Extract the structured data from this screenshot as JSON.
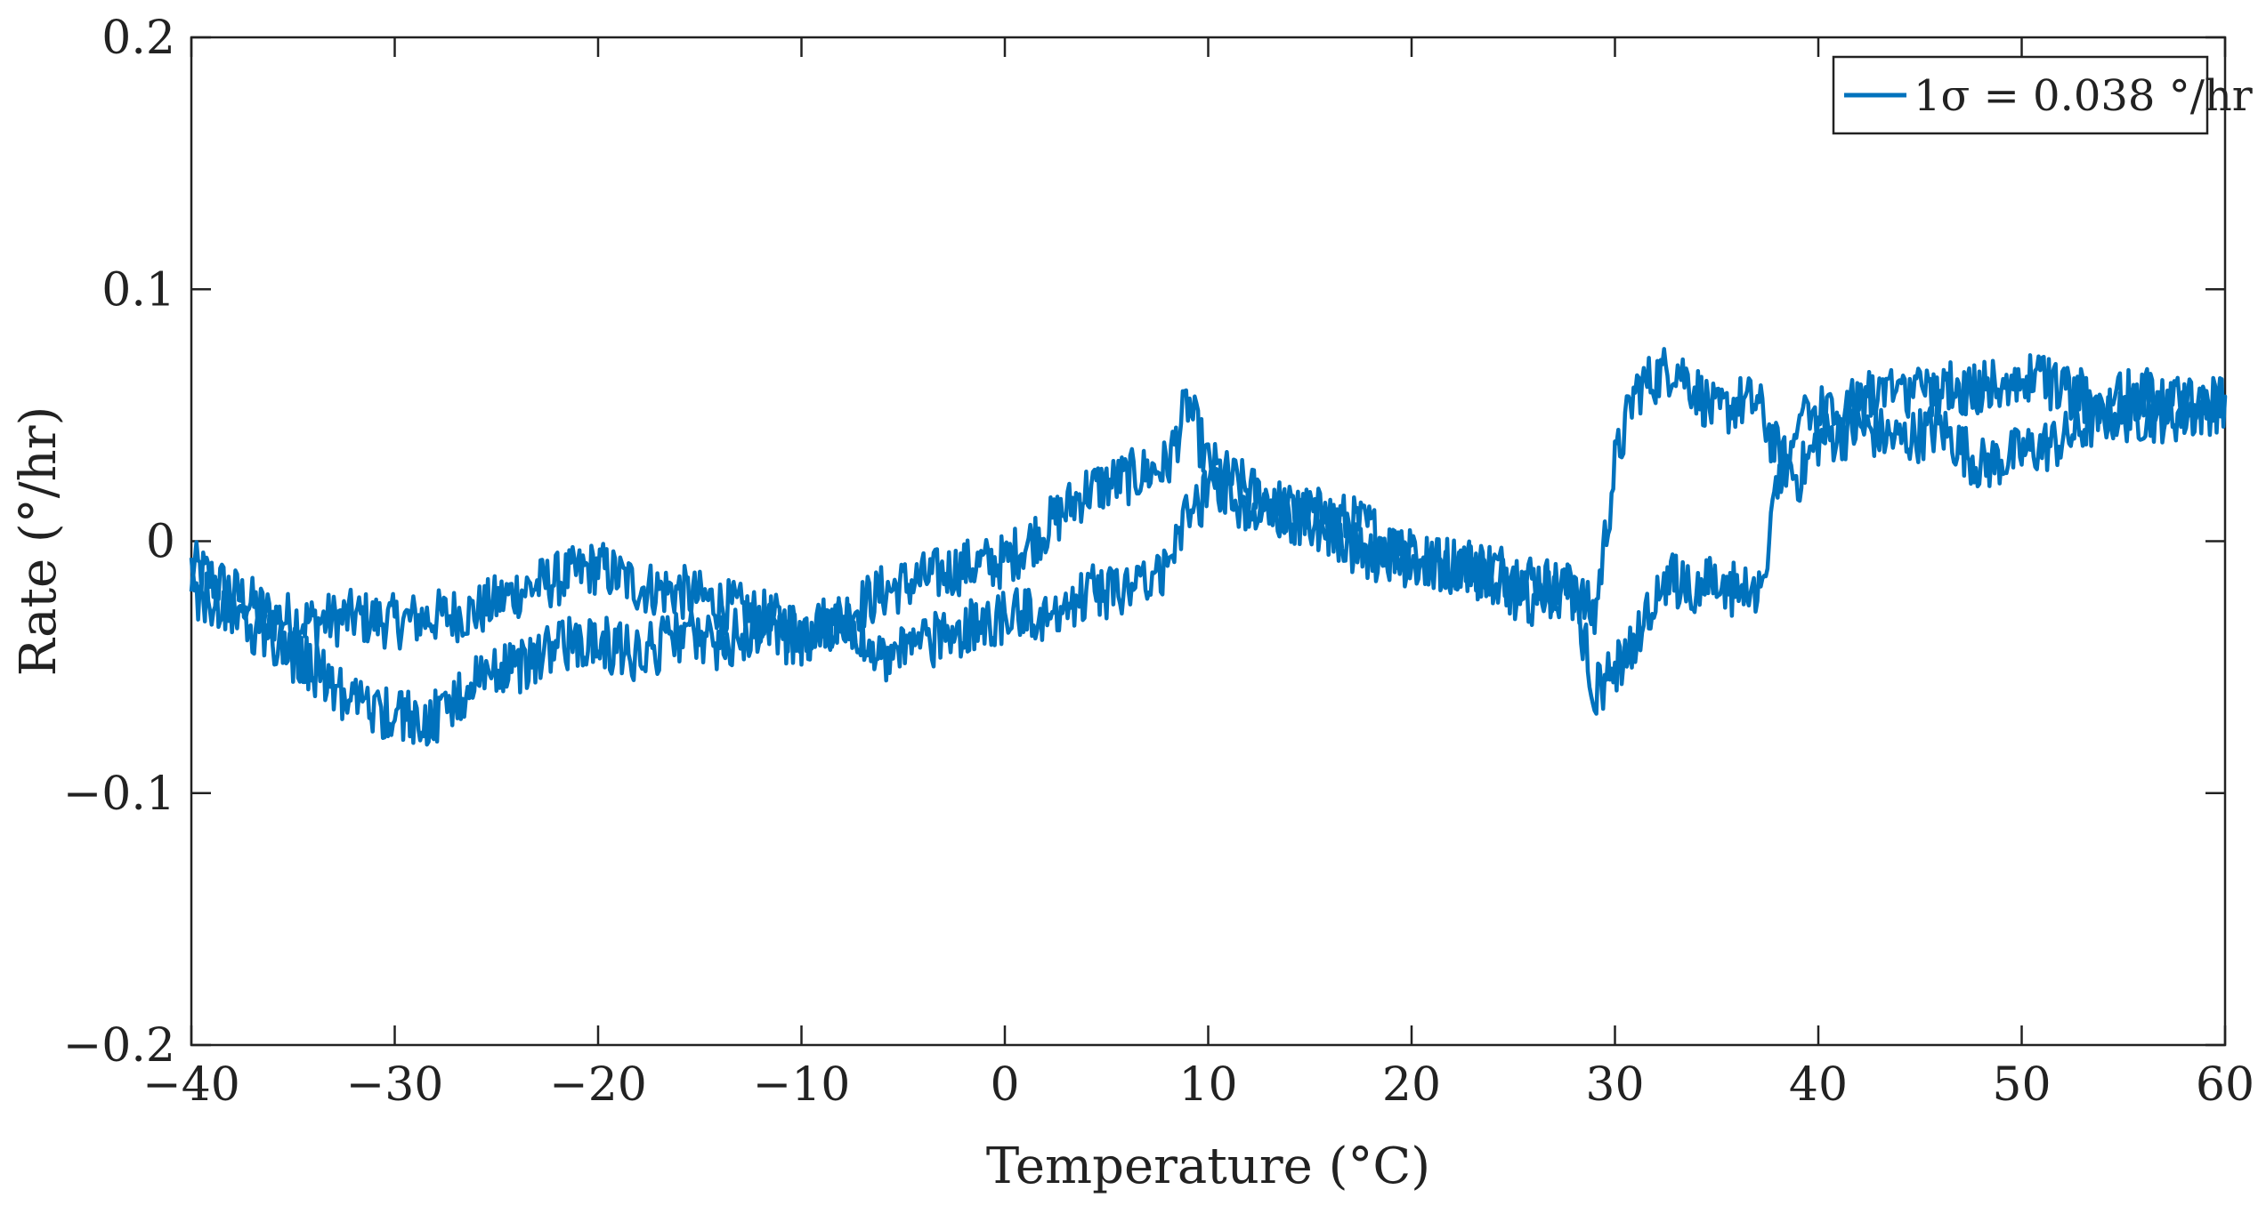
{
  "chart_data": {
    "type": "line",
    "title": "",
    "xlabel": "Temperature (°C)",
    "ylabel": "Rate (°/hr)",
    "xlim": [
      -40,
      60
    ],
    "ylim": [
      -0.2,
      0.2
    ],
    "x_ticks": [
      -40,
      -30,
      -20,
      -10,
      0,
      10,
      20,
      30,
      40,
      50,
      60
    ],
    "x_tick_labels": [
      "−40",
      "−30",
      "−20",
      "−10",
      "0",
      "10",
      "20",
      "30",
      "40",
      "50",
      "60"
    ],
    "y_ticks": [
      -0.2,
      -0.1,
      0,
      0.1,
      0.2
    ],
    "y_tick_labels": [
      "−0.2",
      "−0.1",
      "0",
      "0.1",
      "0.2"
    ],
    "grid": false,
    "legend_position": "top-right",
    "legend_text": "1σ = 0.038 °/hr",
    "line_color": "#0072BD",
    "series": [
      {
        "name": "1σ = 0.038 °/hr",
        "color": "#0072BD",
        "x": [
          -40,
          -38,
          -36,
          -34,
          -32,
          -30,
          -28,
          -26,
          -24,
          -22,
          -20,
          -18,
          -16,
          -14,
          -12,
          -10,
          -8,
          -6,
          -4,
          -2,
          0,
          2,
          4,
          6,
          8,
          9,
          10,
          12,
          14,
          16,
          18,
          20,
          22,
          24,
          26,
          28,
          29,
          30,
          31,
          32,
          33,
          34,
          35,
          36,
          37,
          38,
          39,
          40,
          42,
          44,
          46,
          48,
          50,
          52,
          54,
          56,
          58,
          60,
          58,
          56,
          54,
          52,
          50,
          48,
          46,
          44,
          42,
          40,
          39,
          38,
          37,
          36,
          35,
          34,
          33,
          32,
          31,
          30,
          29,
          28,
          26,
          24,
          22,
          20,
          18,
          16,
          14,
          12,
          10,
          9,
          8,
          6,
          4,
          2,
          0,
          -2,
          -4,
          -6,
          -8,
          -10,
          -12,
          -14,
          -16,
          -18,
          -20,
          -22,
          -24,
          -26,
          -28,
          -30,
          -32,
          -34,
          -36,
          -38,
          -40
        ],
        "y": [
          -0.01,
          -0.02,
          -0.03,
          -0.032,
          -0.03,
          -0.032,
          -0.03,
          -0.028,
          -0.02,
          -0.015,
          -0.01,
          -0.018,
          -0.02,
          -0.025,
          -0.03,
          -0.035,
          -0.03,
          -0.02,
          -0.015,
          -0.01,
          -0.008,
          0.005,
          0.02,
          0.025,
          0.03,
          0.055,
          0.03,
          0.02,
          0.012,
          0.01,
          0.005,
          -0.01,
          -0.008,
          -0.01,
          -0.015,
          -0.02,
          -0.03,
          0.03,
          0.06,
          0.065,
          0.07,
          0.06,
          0.05,
          0.055,
          0.055,
          0.035,
          0.025,
          0.04,
          0.045,
          0.04,
          0.045,
          0.03,
          0.035,
          0.04,
          0.05,
          0.05,
          0.05,
          0.055,
          0.055,
          0.06,
          0.055,
          0.06,
          0.065,
          0.06,
          0.06,
          0.06,
          0.055,
          0.05,
          0.045,
          0.02,
          -0.02,
          -0.02,
          -0.015,
          -0.02,
          -0.015,
          -0.02,
          -0.04,
          -0.05,
          -0.06,
          -0.02,
          -0.025,
          -0.015,
          -0.01,
          -0.005,
          -0.008,
          0.005,
          0.01,
          0.015,
          0.02,
          0.01,
          -0.01,
          -0.02,
          -0.02,
          -0.03,
          -0.03,
          -0.035,
          -0.04,
          -0.045,
          -0.03,
          -0.04,
          -0.035,
          -0.04,
          -0.038,
          -0.045,
          -0.04,
          -0.042,
          -0.05,
          -0.055,
          -0.07,
          -0.07,
          -0.065,
          -0.05,
          -0.04,
          -0.03,
          -0.02
        ]
      }
    ]
  }
}
